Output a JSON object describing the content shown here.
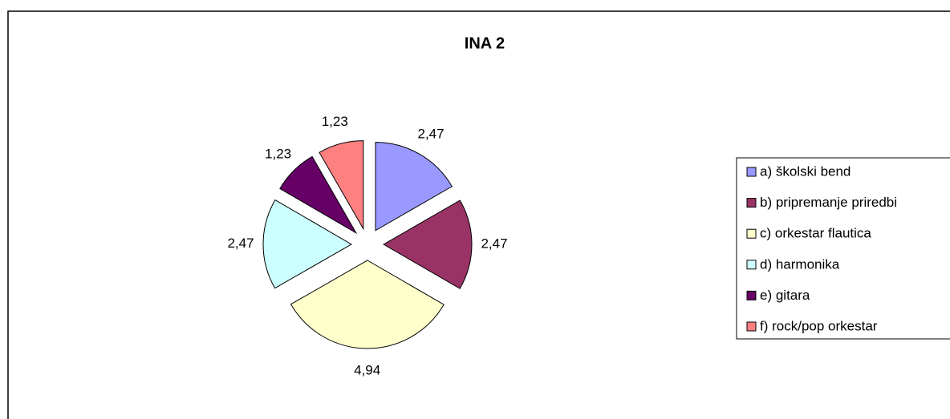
{
  "chart_data": {
    "type": "pie",
    "title": "INA 2",
    "categories": [
      "a) školski bend",
      "b) pripremanje priredbi",
      "c) orkestar flautica",
      "d) harmonika",
      "e) gitara",
      "f) rock/pop orkestar"
    ],
    "values": [
      2.47,
      2.47,
      4.94,
      2.47,
      1.23,
      1.23
    ],
    "value_labels": [
      "2,47",
      "2,47",
      "4,94",
      "2,47",
      "1,23",
      "1,23"
    ],
    "colors": [
      "#9999ff",
      "#993366",
      "#ffffcc",
      "#ccffff",
      "#660066",
      "#ff8080"
    ],
    "legend": "right"
  }
}
